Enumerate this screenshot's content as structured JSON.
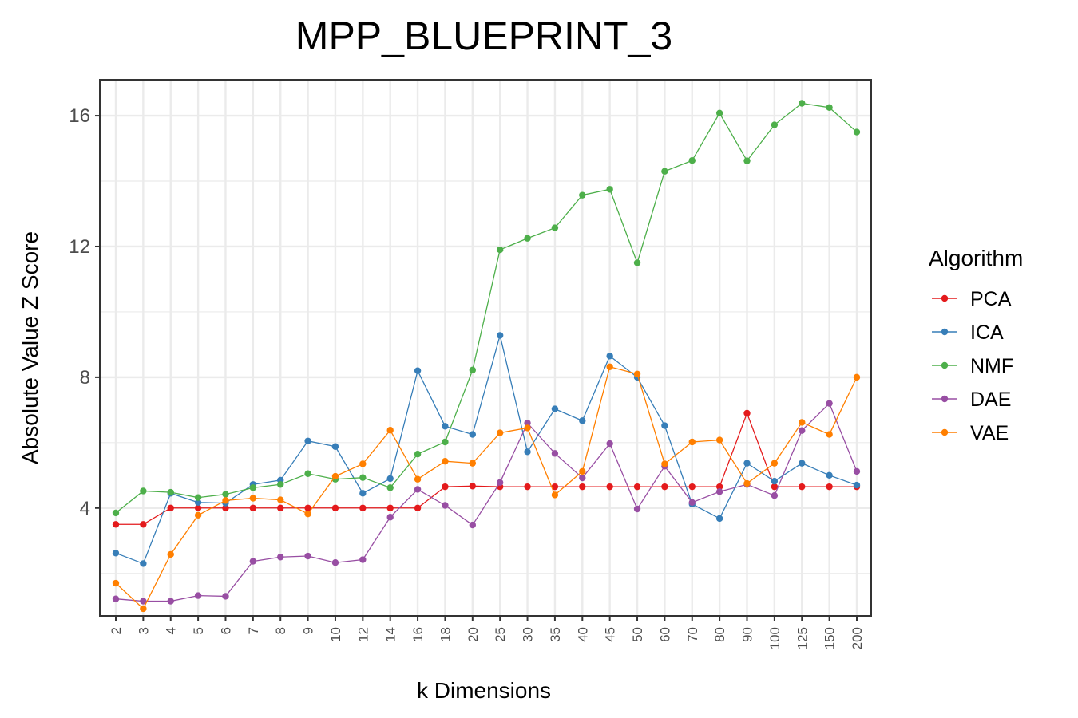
{
  "chart_data": {
    "type": "line",
    "title": "MPP_BLUEPRINT_3",
    "xlabel": "k Dimensions",
    "ylabel": "Absolute Value Z Score",
    "categories": [
      "2",
      "3",
      "4",
      "5",
      "6",
      "7",
      "8",
      "9",
      "10",
      "12",
      "14",
      "16",
      "18",
      "20",
      "25",
      "30",
      "35",
      "40",
      "45",
      "50",
      "60",
      "70",
      "80",
      "90",
      "100",
      "125",
      "150",
      "200"
    ],
    "ylim": [
      0.7,
      17.1
    ],
    "yticks": [
      4,
      8,
      12,
      16
    ],
    "grid": true,
    "legend": {
      "title": "Algorithm",
      "position": "right"
    },
    "series": [
      {
        "name": "PCA",
        "color": "#e41a1c",
        "values": [
          3.5,
          3.5,
          4.0,
          4.0,
          4.0,
          4.0,
          4.0,
          4.0,
          4.0,
          4.0,
          4.0,
          4.0,
          4.65,
          4.67,
          4.65,
          4.65,
          4.65,
          4.65,
          4.65,
          4.65,
          4.65,
          4.65,
          4.65,
          6.9,
          4.65,
          4.65,
          4.65,
          4.65
        ]
      },
      {
        "name": "ICA",
        "color": "#377eb8",
        "values": [
          2.62,
          2.3,
          4.45,
          4.17,
          4.15,
          4.72,
          4.85,
          6.05,
          5.88,
          4.45,
          4.9,
          8.2,
          6.5,
          6.25,
          9.28,
          5.72,
          7.03,
          6.67,
          8.65,
          8.0,
          6.52,
          4.12,
          3.68,
          5.37,
          4.82,
          5.37,
          5.0,
          4.7
        ]
      },
      {
        "name": "NMF",
        "color": "#4daf4a",
        "values": [
          3.85,
          4.52,
          4.48,
          4.32,
          4.42,
          4.62,
          4.72,
          5.05,
          4.88,
          4.93,
          4.62,
          5.65,
          6.02,
          8.22,
          11.9,
          12.25,
          12.57,
          13.57,
          13.75,
          11.5,
          14.3,
          14.63,
          16.08,
          14.62,
          15.72,
          16.38,
          16.25,
          15.5
        ]
      },
      {
        "name": "DAE",
        "color": "#984ea3",
        "values": [
          1.22,
          1.15,
          1.15,
          1.32,
          1.3,
          2.37,
          2.5,
          2.53,
          2.33,
          2.42,
          3.72,
          4.57,
          4.08,
          3.48,
          4.78,
          6.6,
          5.67,
          4.92,
          5.97,
          3.97,
          5.28,
          4.17,
          4.5,
          4.72,
          4.38,
          6.37,
          7.2,
          5.12
        ]
      },
      {
        "name": "VAE",
        "color": "#ff7f00",
        "values": [
          1.7,
          0.92,
          2.58,
          3.78,
          4.23,
          4.3,
          4.25,
          3.82,
          4.97,
          5.35,
          6.38,
          4.88,
          5.43,
          5.37,
          6.3,
          6.45,
          4.4,
          5.12,
          8.32,
          8.1,
          5.35,
          6.02,
          6.08,
          4.75,
          5.37,
          6.62,
          6.25,
          8.0
        ]
      }
    ]
  }
}
